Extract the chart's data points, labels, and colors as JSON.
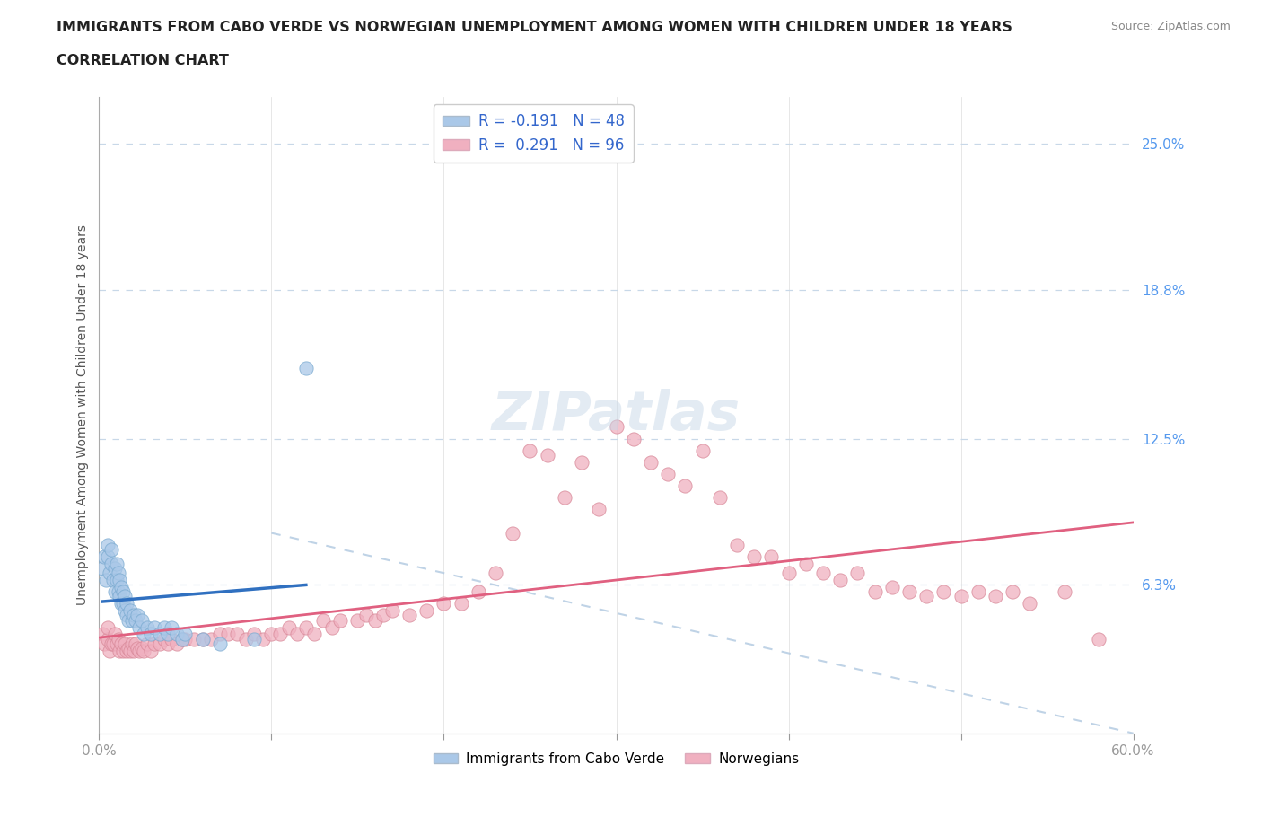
{
  "title_line1": "IMMIGRANTS FROM CABO VERDE VS NORWEGIAN UNEMPLOYMENT AMONG WOMEN WITH CHILDREN UNDER 18 YEARS",
  "title_line2": "CORRELATION CHART",
  "source_text": "Source: ZipAtlas.com",
  "ylabel": "Unemployment Among Women with Children Under 18 years",
  "xlim": [
    0.0,
    0.6
  ],
  "ylim": [
    0.0,
    0.27
  ],
  "xtick_positions": [
    0.0,
    0.6
  ],
  "xticklabels": [
    "0.0%",
    "60.0%"
  ],
  "yticks_right": [
    0.063,
    0.125,
    0.188,
    0.25
  ],
  "ytick_labels_right": [
    "6.3%",
    "12.5%",
    "18.8%",
    "25.0%"
  ],
  "grid_color": "#c8d8e8",
  "background_color": "#ffffff",
  "cabo_verde_color": "#aac8e8",
  "cabo_verde_edge": "#7aaad0",
  "norwegian_color": "#f0b0c0",
  "norwegian_edge": "#d88898",
  "cabo_verde_R": -0.191,
  "cabo_verde_N": 48,
  "norwegian_R": 0.291,
  "norwegian_N": 96,
  "cabo_verde_line_color": "#3070c0",
  "norwegian_line_color": "#e06080",
  "dashed_line_color": "#b0c8e0",
  "legend_label_cabo": "Immigrants from Cabo Verde",
  "legend_label_nor": "Norwegians",
  "cabo_verde_scatter_x": [
    0.002,
    0.003,
    0.004,
    0.005,
    0.005,
    0.006,
    0.007,
    0.007,
    0.008,
    0.009,
    0.009,
    0.01,
    0.01,
    0.011,
    0.011,
    0.012,
    0.012,
    0.013,
    0.013,
    0.014,
    0.014,
    0.015,
    0.015,
    0.016,
    0.016,
    0.017,
    0.018,
    0.019,
    0.02,
    0.021,
    0.022,
    0.023,
    0.025,
    0.026,
    0.028,
    0.03,
    0.032,
    0.035,
    0.038,
    0.04,
    0.042,
    0.045,
    0.048,
    0.05,
    0.06,
    0.07,
    0.09,
    0.12
  ],
  "cabo_verde_scatter_y": [
    0.07,
    0.075,
    0.065,
    0.075,
    0.08,
    0.068,
    0.072,
    0.078,
    0.065,
    0.06,
    0.07,
    0.065,
    0.072,
    0.06,
    0.068,
    0.058,
    0.065,
    0.055,
    0.062,
    0.055,
    0.06,
    0.052,
    0.058,
    0.05,
    0.055,
    0.048,
    0.052,
    0.048,
    0.05,
    0.048,
    0.05,
    0.045,
    0.048,
    0.042,
    0.045,
    0.042,
    0.045,
    0.042,
    0.045,
    0.042,
    0.045,
    0.042,
    0.04,
    0.042,
    0.04,
    0.038,
    0.04,
    0.155
  ],
  "norwegian_scatter_x": [
    0.002,
    0.003,
    0.005,
    0.005,
    0.006,
    0.007,
    0.008,
    0.009,
    0.01,
    0.011,
    0.012,
    0.013,
    0.014,
    0.015,
    0.016,
    0.017,
    0.018,
    0.019,
    0.02,
    0.021,
    0.022,
    0.023,
    0.025,
    0.026,
    0.028,
    0.03,
    0.032,
    0.035,
    0.038,
    0.04,
    0.042,
    0.045,
    0.048,
    0.05,
    0.055,
    0.06,
    0.065,
    0.07,
    0.075,
    0.08,
    0.085,
    0.09,
    0.095,
    0.1,
    0.105,
    0.11,
    0.115,
    0.12,
    0.125,
    0.13,
    0.135,
    0.14,
    0.15,
    0.155,
    0.16,
    0.165,
    0.17,
    0.18,
    0.19,
    0.2,
    0.21,
    0.22,
    0.23,
    0.24,
    0.25,
    0.26,
    0.27,
    0.28,
    0.29,
    0.3,
    0.31,
    0.32,
    0.33,
    0.34,
    0.35,
    0.36,
    0.37,
    0.38,
    0.39,
    0.4,
    0.41,
    0.42,
    0.43,
    0.44,
    0.45,
    0.46,
    0.47,
    0.48,
    0.49,
    0.5,
    0.51,
    0.52,
    0.53,
    0.54,
    0.56,
    0.58
  ],
  "norwegian_scatter_y": [
    0.042,
    0.038,
    0.04,
    0.045,
    0.035,
    0.038,
    0.038,
    0.042,
    0.038,
    0.04,
    0.035,
    0.038,
    0.035,
    0.038,
    0.035,
    0.036,
    0.035,
    0.038,
    0.035,
    0.038,
    0.036,
    0.035,
    0.036,
    0.035,
    0.038,
    0.035,
    0.038,
    0.038,
    0.04,
    0.038,
    0.04,
    0.038,
    0.04,
    0.04,
    0.04,
    0.04,
    0.04,
    0.042,
    0.042,
    0.042,
    0.04,
    0.042,
    0.04,
    0.042,
    0.042,
    0.045,
    0.042,
    0.045,
    0.042,
    0.048,
    0.045,
    0.048,
    0.048,
    0.05,
    0.048,
    0.05,
    0.052,
    0.05,
    0.052,
    0.055,
    0.055,
    0.06,
    0.068,
    0.085,
    0.12,
    0.118,
    0.1,
    0.115,
    0.095,
    0.13,
    0.125,
    0.115,
    0.11,
    0.105,
    0.12,
    0.1,
    0.08,
    0.075,
    0.075,
    0.068,
    0.072,
    0.068,
    0.065,
    0.068,
    0.06,
    0.062,
    0.06,
    0.058,
    0.06,
    0.058,
    0.06,
    0.058,
    0.06,
    0.055,
    0.06,
    0.04
  ]
}
